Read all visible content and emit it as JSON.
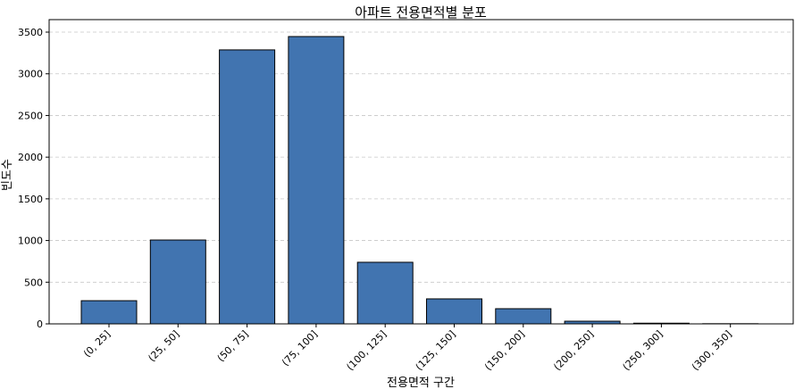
{
  "chart_data": {
    "type": "bar",
    "title": "아파트 전용면적별 분포",
    "xlabel": "전용면적 구간",
    "ylabel": "빈도수",
    "categories": [
      "(0, 25]",
      "(25, 50]",
      "(50, 75]",
      "(75, 100]",
      "(100, 125]",
      "(125, 150]",
      "(150, 200]",
      "(200, 250]",
      "(250, 300]",
      "(300, 350]"
    ],
    "values": [
      278,
      1006,
      3287,
      3447,
      739,
      300,
      182,
      32,
      8,
      2
    ],
    "color": "#4174b0",
    "edgecolor": "#000000",
    "ylim": [
      0,
      3650
    ],
    "yticks": [
      0,
      500,
      1000,
      1500,
      2000,
      2500,
      3000,
      3500
    ],
    "grid": true
  }
}
